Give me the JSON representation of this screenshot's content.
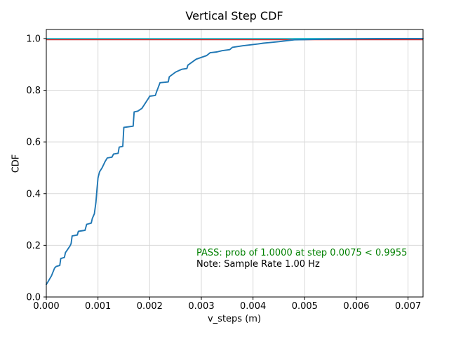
{
  "figure": {
    "title": "Vertical Step CDF",
    "xlabel": "v_steps (m)",
    "ylabel": "CDF"
  },
  "annotations": {
    "pass_text": "PASS: prob of 1.0000 at step 0.0075 < 0.9955",
    "pass_color": "#008000",
    "note_text": "Note: Sample Rate 1.00 Hz",
    "note_color": "#000000"
  },
  "chart_data": {
    "type": "line",
    "title": "Vertical Step CDF",
    "xlabel": "v_steps (m)",
    "ylabel": "CDF",
    "xlim": [
      0,
      0.00729
    ],
    "ylim": [
      0,
      1.035
    ],
    "grid": true,
    "legend": false,
    "xticks": {
      "values": [
        0,
        0.001,
        0.002,
        0.003,
        0.004,
        0.005,
        0.006,
        0.007
      ],
      "labels": [
        "0.000",
        "0.001",
        "0.002",
        "0.003",
        "0.004",
        "0.005",
        "0.006",
        "0.007"
      ]
    },
    "yticks": {
      "values": [
        0,
        0.2,
        0.4,
        0.6,
        0.8,
        1.0
      ],
      "labels": [
        "0.0",
        "0.2",
        "0.4",
        "0.6",
        "0.8",
        "1.0"
      ]
    },
    "series": [
      {
        "name": "vertical-step-cdf",
        "color": "#1f77b4",
        "points": [
          [
            0.0,
            0.048
          ],
          [
            3e-05,
            0.058
          ],
          [
            0.0001,
            0.082
          ],
          [
            0.00016,
            0.112
          ],
          [
            0.00019,
            0.118
          ],
          [
            0.00026,
            0.122
          ],
          [
            0.00028,
            0.149
          ],
          [
            0.00035,
            0.153
          ],
          [
            0.00037,
            0.172
          ],
          [
            0.00039,
            0.177
          ],
          [
            0.00046,
            0.198
          ],
          [
            0.00048,
            0.207
          ],
          [
            0.0005,
            0.236
          ],
          [
            0.0006,
            0.24
          ],
          [
            0.00062,
            0.254
          ],
          [
            0.00075,
            0.258
          ],
          [
            0.00078,
            0.281
          ],
          [
            0.00087,
            0.286
          ],
          [
            0.00089,
            0.304
          ],
          [
            0.00093,
            0.322
          ],
          [
            0.00096,
            0.366
          ],
          [
            0.00098,
            0.416
          ],
          [
            0.001,
            0.461
          ],
          [
            0.00103,
            0.484
          ],
          [
            0.00108,
            0.5
          ],
          [
            0.00114,
            0.525
          ],
          [
            0.00118,
            0.538
          ],
          [
            0.00127,
            0.541
          ],
          [
            0.0013,
            0.553
          ],
          [
            0.00139,
            0.556
          ],
          [
            0.00141,
            0.58
          ],
          [
            0.00148,
            0.583
          ],
          [
            0.0015,
            0.656
          ],
          [
            0.00168,
            0.661
          ],
          [
            0.0017,
            0.716
          ],
          [
            0.00177,
            0.719
          ],
          [
            0.00185,
            0.73
          ],
          [
            0.00198,
            0.77
          ],
          [
            0.002,
            0.777
          ],
          [
            0.00211,
            0.78
          ],
          [
            0.00213,
            0.792
          ],
          [
            0.0022,
            0.829
          ],
          [
            0.00236,
            0.832
          ],
          [
            0.00238,
            0.852
          ],
          [
            0.0025,
            0.87
          ],
          [
            0.00262,
            0.881
          ],
          [
            0.00272,
            0.884
          ],
          [
            0.00274,
            0.897
          ],
          [
            0.0029,
            0.92
          ],
          [
            0.0031,
            0.934
          ],
          [
            0.00317,
            0.945
          ],
          [
            0.0033,
            0.948
          ],
          [
            0.0034,
            0.953
          ],
          [
            0.00355,
            0.957
          ],
          [
            0.0036,
            0.966
          ],
          [
            0.0038,
            0.972
          ],
          [
            0.004,
            0.977
          ],
          [
            0.0041,
            0.979
          ],
          [
            0.0042,
            0.982
          ],
          [
            0.00435,
            0.985
          ],
          [
            0.0045,
            0.988
          ],
          [
            0.0047,
            0.993
          ],
          [
            0.0048,
            0.995
          ],
          [
            0.005,
            0.996
          ],
          [
            0.0052,
            0.997
          ],
          [
            0.0056,
            0.998
          ],
          [
            0.006,
            0.999
          ],
          [
            0.0064,
            0.9995
          ],
          [
            0.007,
            1.0
          ],
          [
            0.00729,
            1.0
          ]
        ]
      }
    ],
    "hlines": [
      {
        "name": "prob-line",
        "y": 1.0,
        "color": "#17becf"
      },
      {
        "name": "threshold-line",
        "y": 0.9955,
        "color": "#d62728"
      }
    ],
    "colors": {
      "grid": "#d8d8d8",
      "spine": "#000000",
      "background": "#ffffff"
    }
  }
}
